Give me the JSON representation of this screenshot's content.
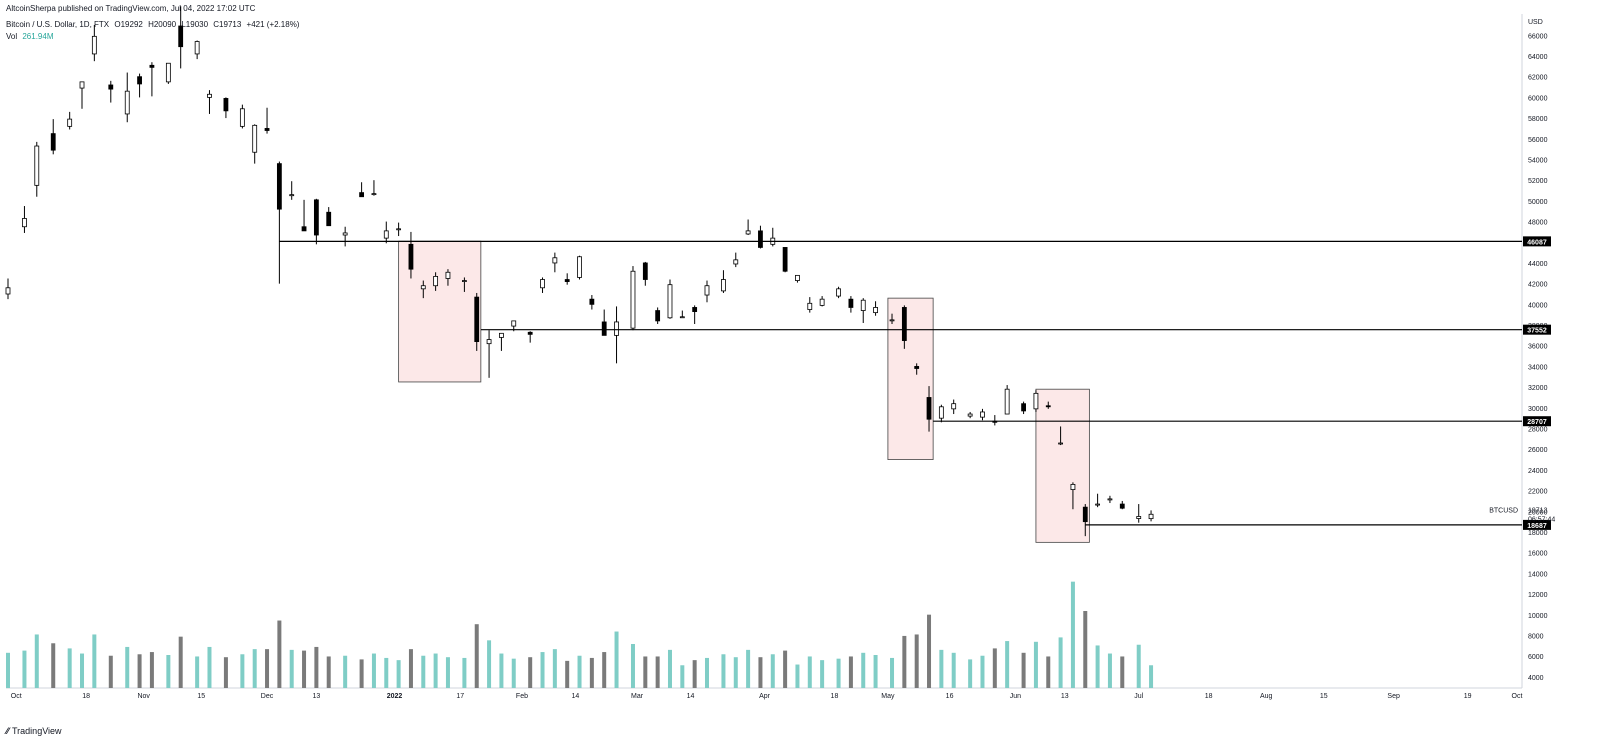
{
  "header": {
    "published": "AltcoinSherpa published on TradingView.com, Jul 04, 2022 17:02 UTC",
    "symbol": "Bitcoin / U.S. Dollar, 1D, FTX",
    "open": "O19292",
    "high": "H20090",
    "low": "L19030",
    "close": "C19713",
    "change": "+421 (+2.18%)",
    "vol_label": "Vol",
    "vol_value": "261.94M"
  },
  "footer": {
    "logo_text": "TradingView"
  },
  "colors": {
    "candle_up": "#ffffff",
    "candle_down": "#000000",
    "candle_outline": "#000000",
    "vol_up": "#7fcdc6",
    "vol_down": "#7a7a7a",
    "box_fill": "#fce8e8",
    "box_stroke": "#444444",
    "level_line": "#000000",
    "label_bg": "#000000",
    "label_text": "#ffffff"
  },
  "chart_data": {
    "type": "candlestick",
    "currency_label": "USD",
    "y_ticks": [
      4000,
      6000,
      8000,
      10000,
      12000,
      14000,
      16000,
      18000,
      20000,
      22000,
      24000,
      26000,
      28000,
      30000,
      32000,
      34000,
      36000,
      38000,
      40000,
      42000,
      44000,
      46000,
      48000,
      50000,
      52000,
      54000,
      56000,
      58000,
      60000,
      62000,
      64000,
      66000
    ],
    "x_ticks": [
      {
        "label": "Oct",
        "date": "2021-10-01"
      },
      {
        "label": "18",
        "date": "2021-10-18"
      },
      {
        "label": "Nov",
        "date": "2021-11-01"
      },
      {
        "label": "15",
        "date": "2021-11-15"
      },
      {
        "label": "Dec",
        "date": "2021-12-01"
      },
      {
        "label": "13",
        "date": "2021-12-13"
      },
      {
        "label": "2022",
        "date": "2022-01-01"
      },
      {
        "label": "17",
        "date": "2022-01-17"
      },
      {
        "label": "Feb",
        "date": "2022-02-01"
      },
      {
        "label": "14",
        "date": "2022-02-14"
      },
      {
        "label": "Mar",
        "date": "2022-03-01"
      },
      {
        "label": "14",
        "date": "2022-03-14"
      },
      {
        "label": "Apr",
        "date": "2022-04-01"
      },
      {
        "label": "18",
        "date": "2022-04-18"
      },
      {
        "label": "May",
        "date": "2022-05-01"
      },
      {
        "label": "16",
        "date": "2022-05-16"
      },
      {
        "label": "Jun",
        "date": "2022-06-01"
      },
      {
        "label": "13",
        "date": "2022-06-13"
      },
      {
        "label": "Jul",
        "date": "2022-07-01"
      },
      {
        "label": "18",
        "date": "2022-07-18"
      },
      {
        "label": "Aug",
        "date": "2022-08-01"
      },
      {
        "label": "15",
        "date": "2022-08-15"
      },
      {
        "label": "Sep",
        "date": "2022-09-01"
      },
      {
        "label": "19",
        "date": "2022-09-19"
      },
      {
        "label": "Oct",
        "date": "2022-10-01"
      }
    ],
    "levels": [
      {
        "value": 46087,
        "label": "46087",
        "from": "2021-12-04"
      },
      {
        "value": 37552,
        "label": "37552",
        "from": "2022-01-22"
      },
      {
        "value": 28707,
        "label": "28707",
        "from": "2022-05-12"
      },
      {
        "value": 18687,
        "label": "18687",
        "from": "2022-06-18"
      }
    ],
    "boxes": [
      {
        "from": "2022-01-02",
        "to": "2022-01-22",
        "low": 32500,
        "high": 46100
      },
      {
        "from": "2022-05-01",
        "to": "2022-05-12",
        "low": 25000,
        "high": 40600
      },
      {
        "from": "2022-06-06",
        "to": "2022-06-19",
        "low": 17000,
        "high": 31800
      }
    ],
    "last_price": {
      "symbol": "BTCUSD",
      "price": "19713",
      "countdown": "06:57:44",
      "value": 19713
    },
    "candles": [
      {
        "d": "2021-09-29",
        "o": 41000,
        "h": 42500,
        "l": 40500,
        "c": 41600,
        "v": 4800
      },
      {
        "d": "2021-10-03",
        "o": 47500,
        "h": 49500,
        "l": 46900,
        "c": 48300,
        "v": 5100
      },
      {
        "d": "2021-10-06",
        "o": 51500,
        "h": 55700,
        "l": 50400,
        "c": 55300,
        "v": 7300
      },
      {
        "d": "2021-10-10",
        "o": 56500,
        "h": 57900,
        "l": 54500,
        "c": 54900,
        "v": 6100
      },
      {
        "d": "2021-10-14",
        "o": 57200,
        "h": 58600,
        "l": 56900,
        "c": 57900,
        "v": 5400
      },
      {
        "d": "2021-10-17",
        "o": 60900,
        "h": 61500,
        "l": 58900,
        "c": 61500,
        "v": 4700
      },
      {
        "d": "2021-10-20",
        "o": 64200,
        "h": 67000,
        "l": 63500,
        "c": 65900,
        "v": 7300
      },
      {
        "d": "2021-10-24",
        "o": 61200,
        "h": 61600,
        "l": 59500,
        "c": 60800,
        "v": 4400
      },
      {
        "d": "2021-10-28",
        "o": 58400,
        "h": 62400,
        "l": 57600,
        "c": 60600,
        "v": 5600
      },
      {
        "d": "2021-10-31",
        "o": 62000,
        "h": 62300,
        "l": 60000,
        "c": 61300,
        "v": 4600
      },
      {
        "d": "2021-11-03",
        "o": 63100,
        "h": 63400,
        "l": 60100,
        "c": 62900,
        "v": 4900
      },
      {
        "d": "2021-11-07",
        "o": 61500,
        "h": 63300,
        "l": 61300,
        "c": 63300,
        "v": 4500
      },
      {
        "d": "2021-11-10",
        "o": 66900,
        "h": 68800,
        "l": 62800,
        "c": 64900,
        "v": 7000
      },
      {
        "d": "2021-11-14",
        "o": 64200,
        "h": 65500,
        "l": 63700,
        "c": 65400,
        "v": 4300
      },
      {
        "d": "2021-11-17",
        "o": 60000,
        "h": 60700,
        "l": 58400,
        "c": 60300,
        "v": 5600
      },
      {
        "d": "2021-11-21",
        "o": 59900,
        "h": 60000,
        "l": 58000,
        "c": 58700,
        "v": 4200
      },
      {
        "d": "2021-11-25",
        "o": 57200,
        "h": 59300,
        "l": 57000,
        "c": 58900,
        "v": 4600
      },
      {
        "d": "2021-11-28",
        "o": 54700,
        "h": 57400,
        "l": 53600,
        "c": 57300,
        "v": 5300
      },
      {
        "d": "2021-12-01",
        "o": 57000,
        "h": 59000,
        "l": 56500,
        "c": 56800,
        "v": 5300
      },
      {
        "d": "2021-12-04",
        "o": 53600,
        "h": 53800,
        "l": 42000,
        "c": 49200,
        "v": 9200
      },
      {
        "d": "2021-12-07",
        "o": 50500,
        "h": 51900,
        "l": 50100,
        "c": 50600,
        "v": 5200
      },
      {
        "d": "2021-12-10",
        "o": 47500,
        "h": 50100,
        "l": 47300,
        "c": 47100,
        "v": 5100
      },
      {
        "d": "2021-12-13",
        "o": 50100,
        "h": 50200,
        "l": 45800,
        "c": 46700,
        "v": 5600
      },
      {
        "d": "2021-12-16",
        "o": 48900,
        "h": 49400,
        "l": 47600,
        "c": 47600,
        "v": 4300
      },
      {
        "d": "2021-12-20",
        "o": 46700,
        "h": 47500,
        "l": 45600,
        "c": 46900,
        "v": 4400
      },
      {
        "d": "2021-12-24",
        "o": 50800,
        "h": 51800,
        "l": 50500,
        "c": 50400,
        "v": 3900
      },
      {
        "d": "2021-12-27",
        "o": 50700,
        "h": 52000,
        "l": 50500,
        "c": 50700,
        "v": 4700
      },
      {
        "d": "2021-12-30",
        "o": 46400,
        "h": 48000,
        "l": 45900,
        "c": 47100,
        "v": 4100
      },
      {
        "d": "2022-01-02",
        "o": 47300,
        "h": 47900,
        "l": 46600,
        "c": 47300,
        "v": 3800
      },
      {
        "d": "2022-01-05",
        "o": 45800,
        "h": 47000,
        "l": 42500,
        "c": 43400,
        "v": 5300
      },
      {
        "d": "2022-01-08",
        "o": 41500,
        "h": 42300,
        "l": 40600,
        "c": 41800,
        "v": 4400
      },
      {
        "d": "2022-01-11",
        "o": 41800,
        "h": 43100,
        "l": 41300,
        "c": 42700,
        "v": 4700
      },
      {
        "d": "2022-01-14",
        "o": 42500,
        "h": 43400,
        "l": 41800,
        "c": 43100,
        "v": 4200
      },
      {
        "d": "2022-01-18",
        "o": 42300,
        "h": 42600,
        "l": 41200,
        "c": 42300,
        "v": 4100
      },
      {
        "d": "2022-01-21",
        "o": 40700,
        "h": 41100,
        "l": 35500,
        "c": 36400,
        "v": 8700
      },
      {
        "d": "2022-01-24",
        "o": 36200,
        "h": 37500,
        "l": 32900,
        "c": 36600,
        "v": 6500
      },
      {
        "d": "2022-01-27",
        "o": 36800,
        "h": 37200,
        "l": 35500,
        "c": 37200,
        "v": 4700
      },
      {
        "d": "2022-01-30",
        "o": 37900,
        "h": 38300,
        "l": 37400,
        "c": 38400,
        "v": 4000
      },
      {
        "d": "2022-02-03",
        "o": 37300,
        "h": 37400,
        "l": 36300,
        "c": 37100,
        "v": 4200
      },
      {
        "d": "2022-02-06",
        "o": 41600,
        "h": 42600,
        "l": 41100,
        "c": 42400,
        "v": 4900
      },
      {
        "d": "2022-02-09",
        "o": 44000,
        "h": 45000,
        "l": 43100,
        "c": 44500,
        "v": 5300
      },
      {
        "d": "2022-02-12",
        "o": 42400,
        "h": 43000,
        "l": 41900,
        "c": 42200,
        "v": 3700
      },
      {
        "d": "2022-02-15",
        "o": 42600,
        "h": 44700,
        "l": 42400,
        "c": 44600,
        "v": 4400
      },
      {
        "d": "2022-02-18",
        "o": 40500,
        "h": 40900,
        "l": 39500,
        "c": 40000,
        "v": 4100
      },
      {
        "d": "2022-02-21",
        "o": 38300,
        "h": 39500,
        "l": 37000,
        "c": 37000,
        "v": 4900
      },
      {
        "d": "2022-02-24",
        "o": 37000,
        "h": 39800,
        "l": 34300,
        "c": 38300,
        "v": 7700
      },
      {
        "d": "2022-02-28",
        "o": 37700,
        "h": 43700,
        "l": 37500,
        "c": 43200,
        "v": 6000
      },
      {
        "d": "2022-03-03",
        "o": 44000,
        "h": 44100,
        "l": 41800,
        "c": 42400,
        "v": 4300
      },
      {
        "d": "2022-03-06",
        "o": 39400,
        "h": 39700,
        "l": 38100,
        "c": 38400,
        "v": 4300
      },
      {
        "d": "2022-03-09",
        "o": 38700,
        "h": 42400,
        "l": 38600,
        "c": 41900,
        "v": 5200
      },
      {
        "d": "2022-03-12",
        "o": 38800,
        "h": 39400,
        "l": 38700,
        "c": 38800,
        "v": 3100
      },
      {
        "d": "2022-03-15",
        "o": 39700,
        "h": 39900,
        "l": 38100,
        "c": 39300,
        "v": 3800
      },
      {
        "d": "2022-03-18",
        "o": 40900,
        "h": 42300,
        "l": 40200,
        "c": 41800,
        "v": 4100
      },
      {
        "d": "2022-03-22",
        "o": 41300,
        "h": 43300,
        "l": 41100,
        "c": 42400,
        "v": 4600
      },
      {
        "d": "2022-03-25",
        "o": 43900,
        "h": 45000,
        "l": 43600,
        "c": 44300,
        "v": 4200
      },
      {
        "d": "2022-03-28",
        "o": 46800,
        "h": 48200,
        "l": 46700,
        "c": 47100,
        "v": 5200
      },
      {
        "d": "2022-03-31",
        "o": 47100,
        "h": 47600,
        "l": 45400,
        "c": 45500,
        "v": 4200
      },
      {
        "d": "2022-04-03",
        "o": 45800,
        "h": 47400,
        "l": 45600,
        "c": 46400,
        "v": 4600
      },
      {
        "d": "2022-04-06",
        "o": 45500,
        "h": 45500,
        "l": 43100,
        "c": 43200,
        "v": 5100
      },
      {
        "d": "2022-04-09",
        "o": 42300,
        "h": 42800,
        "l": 42100,
        "c": 42800,
        "v": 3200
      },
      {
        "d": "2022-04-12",
        "o": 39500,
        "h": 40700,
        "l": 39200,
        "c": 40100,
        "v": 4300
      },
      {
        "d": "2022-04-15",
        "o": 39900,
        "h": 40800,
        "l": 39800,
        "c": 40500,
        "v": 3800
      },
      {
        "d": "2022-04-19",
        "o": 40800,
        "h": 41700,
        "l": 40600,
        "c": 41500,
        "v": 4000
      },
      {
        "d": "2022-04-22",
        "o": 40500,
        "h": 40800,
        "l": 39200,
        "c": 39700,
        "v": 4300
      },
      {
        "d": "2022-04-25",
        "o": 39400,
        "h": 40600,
        "l": 38200,
        "c": 40400,
        "v": 4800
      },
      {
        "d": "2022-04-28",
        "o": 39200,
        "h": 40300,
        "l": 38900,
        "c": 39700,
        "v": 4500
      },
      {
        "d": "2022-05-02",
        "o": 38500,
        "h": 39100,
        "l": 38100,
        "c": 38500,
        "v": 4100
      },
      {
        "d": "2022-05-05",
        "o": 39700,
        "h": 39900,
        "l": 35700,
        "c": 36500,
        "v": 7100
      },
      {
        "d": "2022-05-08",
        "o": 34000,
        "h": 34300,
        "l": 33200,
        "c": 33800,
        "v": 7300
      },
      {
        "d": "2022-05-11",
        "o": 31000,
        "h": 32100,
        "l": 27700,
        "c": 28900,
        "v": 10000
      },
      {
        "d": "2022-05-14",
        "o": 29000,
        "h": 30300,
        "l": 28600,
        "c": 30100,
        "v": 5200
      },
      {
        "d": "2022-05-17",
        "o": 29900,
        "h": 30800,
        "l": 29400,
        "c": 30400,
        "v": 4800
      },
      {
        "d": "2022-05-21",
        "o": 29200,
        "h": 29600,
        "l": 29000,
        "c": 29400,
        "v": 3900
      },
      {
        "d": "2022-05-24",
        "o": 29100,
        "h": 29900,
        "l": 28800,
        "c": 29600,
        "v": 4400
      },
      {
        "d": "2022-05-27",
        "o": 28700,
        "h": 29300,
        "l": 28300,
        "c": 28600,
        "v": 5400
      },
      {
        "d": "2022-05-30",
        "o": 29400,
        "h": 32200,
        "l": 29400,
        "c": 31800,
        "v": 6400
      },
      {
        "d": "2022-06-03",
        "o": 30400,
        "h": 30600,
        "l": 29400,
        "c": 29700,
        "v": 4800
      },
      {
        "d": "2022-06-06",
        "o": 29900,
        "h": 31700,
        "l": 29600,
        "c": 31400,
        "v": 6300
      },
      {
        "d": "2022-06-09",
        "o": 30200,
        "h": 30600,
        "l": 29900,
        "c": 30100,
        "v": 4300
      },
      {
        "d": "2022-06-12",
        "o": 26600,
        "h": 28200,
        "l": 26400,
        "c": 26600,
        "v": 6900
      },
      {
        "d": "2022-06-15",
        "o": 22100,
        "h": 22800,
        "l": 20200,
        "c": 22600,
        "v": 14500
      },
      {
        "d": "2022-06-18",
        "o": 20400,
        "h": 20700,
        "l": 17600,
        "c": 19000,
        "v": 10500
      },
      {
        "d": "2022-06-21",
        "o": 20600,
        "h": 21700,
        "l": 20400,
        "c": 20700,
        "v": 5800
      },
      {
        "d": "2022-06-24",
        "o": 21100,
        "h": 21500,
        "l": 20800,
        "c": 21200,
        "v": 4700
      },
      {
        "d": "2022-06-27",
        "o": 20700,
        "h": 21000,
        "l": 20200,
        "c": 20300,
        "v": 4300
      },
      {
        "d": "2022-07-01",
        "o": 19300,
        "h": 20700,
        "l": 18900,
        "c": 19500,
        "v": 5900
      },
      {
        "d": "2022-07-04",
        "o": 19292,
        "h": 20090,
        "l": 19030,
        "c": 19713,
        "v": 3100
      }
    ]
  }
}
